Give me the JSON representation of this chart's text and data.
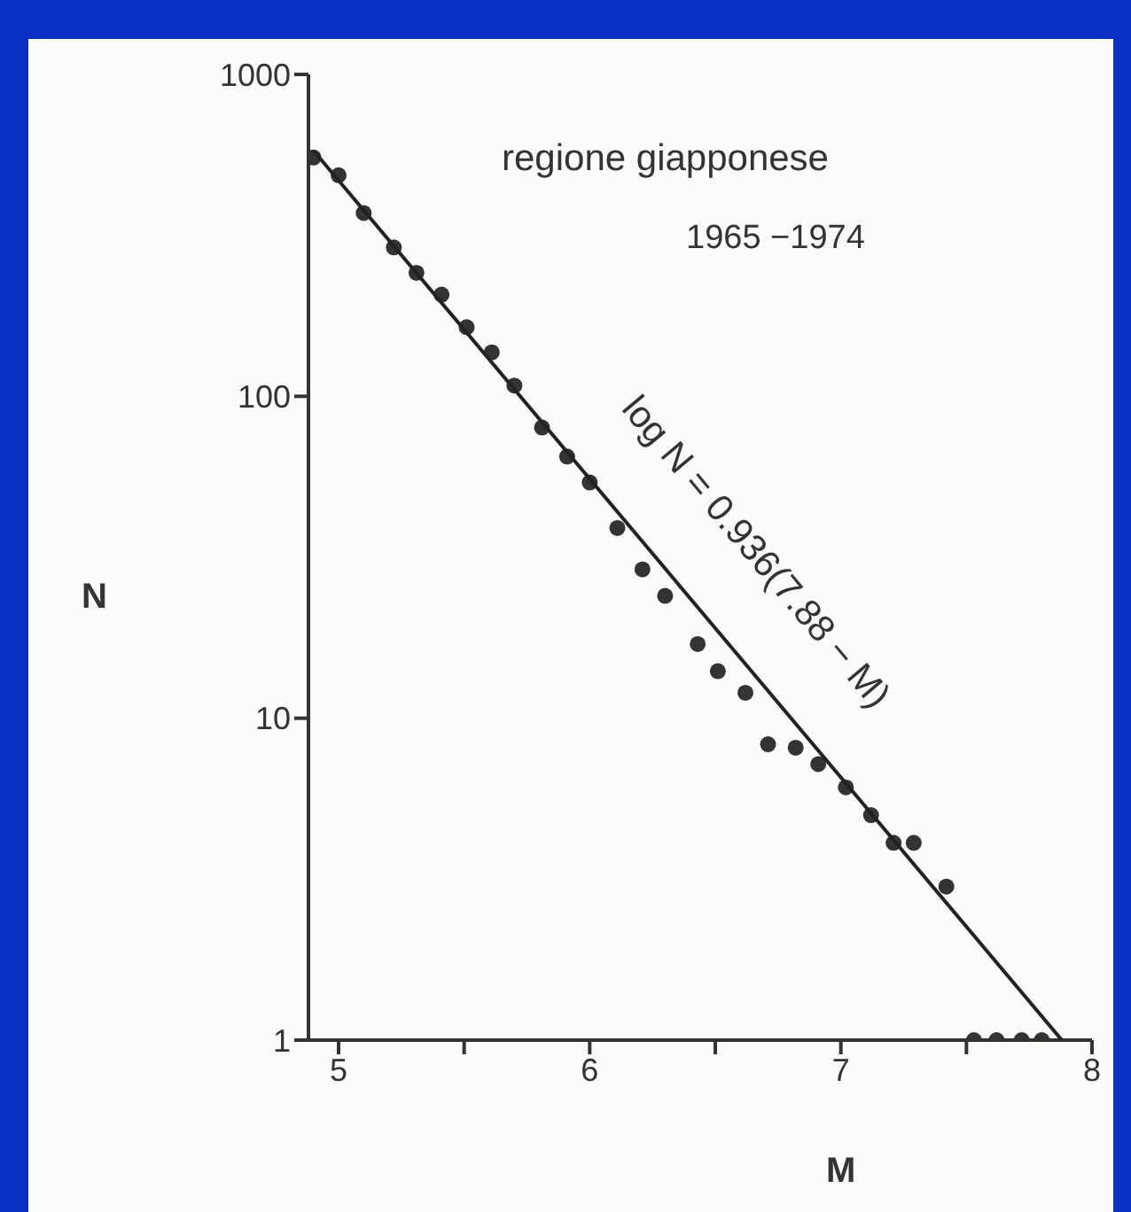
{
  "chart_data": {
    "type": "scatter",
    "xlabel": "M",
    "ylabel": "N",
    "log": "y",
    "marker": "circle",
    "xlim": [
      4.88,
      8
    ],
    "xticks": [
      5,
      {
        "value": 5.5,
        "label": null
      },
      6,
      {
        "value": 6.5,
        "label": null
      },
      7,
      {
        "value": 7.5,
        "label": null
      },
      8
    ],
    "ylim": [
      1,
      1000
    ],
    "yticks": [
      1,
      10,
      100,
      1000
    ],
    "annotations": [
      "regione giapponese",
      "1965 −1974",
      "log N = 0.936(7.88 − M)"
    ],
    "series": [
      {
        "type": "scatter",
        "color": "#333333",
        "x": [
          4.9,
          5.0,
          5.1,
          5.22,
          5.31,
          5.41,
          5.51,
          5.61,
          5.7,
          5.81,
          5.91,
          6.0,
          6.11,
          6.21,
          6.3,
          6.43,
          6.51,
          6.62,
          6.71,
          6.82,
          6.91,
          7.02,
          7.12,
          7.21,
          7.29,
          7.42,
          7.53,
          7.62,
          7.72,
          7.8
        ],
        "values": [
          552,
          486,
          371,
          290,
          242,
          207,
          164,
          137,
          108,
          80,
          65,
          54,
          39,
          29,
          24,
          17,
          14,
          12,
          8.3,
          8.1,
          7.2,
          6.1,
          5,
          4.1,
          4.1,
          3,
          1,
          1,
          1,
          1
        ]
      },
      {
        "type": "line",
        "color": "#222222",
        "marker": "none",
        "x": [
          4.9,
          7.88
        ],
        "values": [
          580,
          1
        ]
      }
    ]
  }
}
